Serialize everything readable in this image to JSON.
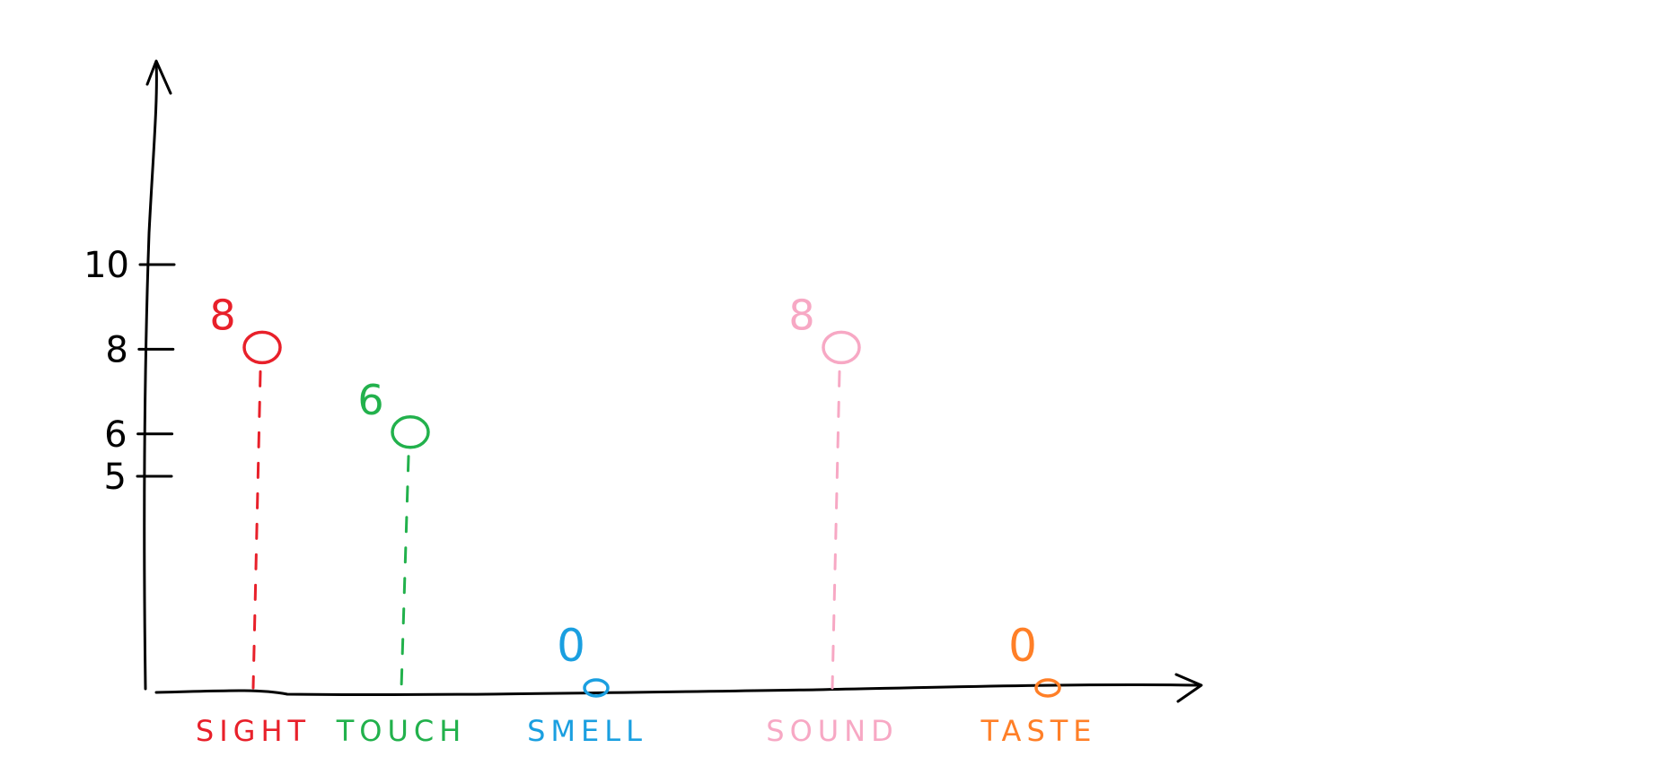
{
  "chart_data": {
    "type": "scatter",
    "categories": [
      "SIGHT",
      "TOUCH",
      "SMELL",
      "SOUND",
      "TASTE"
    ],
    "values": [
      8,
      6,
      0,
      8,
      0
    ],
    "value_labels": [
      "8",
      "6",
      "0",
      "8",
      "0"
    ],
    "colors": [
      "#e8202a",
      "#22b14c",
      "#1a9fe0",
      "#f7a8c4",
      "#ff7f27"
    ],
    "yticks": [
      {
        "value": 10,
        "label": "10"
      },
      {
        "value": 8,
        "label": "8"
      },
      {
        "value": 6,
        "label": "6"
      },
      {
        "value": 5,
        "label": "5"
      }
    ],
    "ylim": [
      0,
      10
    ],
    "title": "",
    "xlabel": "",
    "ylabel": "",
    "grid": false,
    "legend": "none",
    "marker": "hollow circle with dashed drop line",
    "axis_color": "#000000"
  }
}
